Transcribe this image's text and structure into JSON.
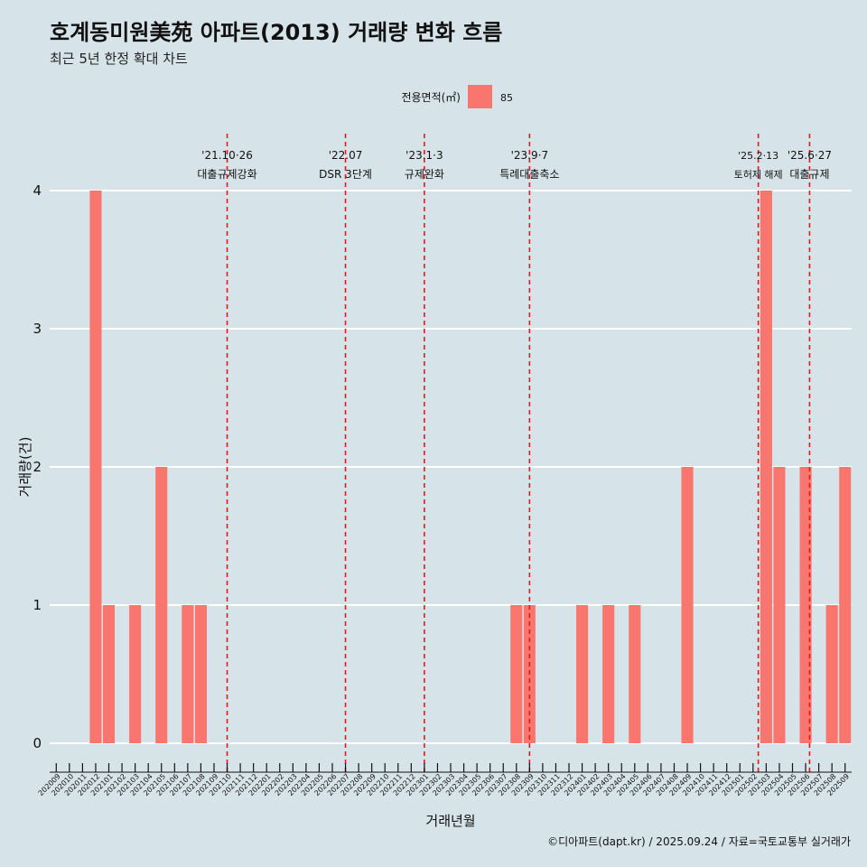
{
  "chart_data": {
    "type": "bar",
    "title": "호계동미원美苑 아파트(2013) 거래량 변화 흐름",
    "subtitle": "최근 5년 한정 확대 차트",
    "xlabel": "거래년월",
    "ylabel": "거래량(건)",
    "ylim": [
      0,
      4
    ],
    "yticks": [
      "0",
      "1",
      "2",
      "3",
      "4"
    ],
    "grid": true,
    "legend": {
      "title": "전용면적(㎡)",
      "placement": "top-center",
      "items": [
        {
          "label": "85",
          "color": "#f8766d"
        }
      ]
    },
    "categories": [
      "202009",
      "202010",
      "202011",
      "202012",
      "202101",
      "202102",
      "202103",
      "202104",
      "202105",
      "202106",
      "202107",
      "202108",
      "202109",
      "202110",
      "202111",
      "202112",
      "202201",
      "202202",
      "202203",
      "202204",
      "202205",
      "202206",
      "202207",
      "202208",
      "202209",
      "202210",
      "202211",
      "202212",
      "202301",
      "202302",
      "202303",
      "202304",
      "202305",
      "202306",
      "202307",
      "202308",
      "202309",
      "202310",
      "202311",
      "202312",
      "202401",
      "202402",
      "202403",
      "202404",
      "202405",
      "202406",
      "202407",
      "202408",
      "202409",
      "202410",
      "202411",
      "202412",
      "202501",
      "202502",
      "202503",
      "202504",
      "202505",
      "202506",
      "202507",
      "202508",
      "202509"
    ],
    "series": [
      {
        "name": "85",
        "color": "#f8766d",
        "values": [
          0,
          0,
          0,
          4,
          1,
          0,
          1,
          0,
          2,
          0,
          1,
          1,
          0,
          0,
          0,
          0,
          0,
          0,
          0,
          0,
          0,
          0,
          0,
          0,
          0,
          0,
          0,
          0,
          0,
          0,
          0,
          0,
          0,
          0,
          0,
          1,
          1,
          0,
          0,
          0,
          1,
          0,
          1,
          0,
          1,
          0,
          0,
          0,
          2,
          0,
          0,
          0,
          0,
          0,
          4,
          2,
          0,
          2,
          0,
          1,
          2
        ]
      }
    ],
    "annotations": [
      {
        "x": 13.0,
        "date": "'21.10·26",
        "label": "대출규제강화",
        "small": false
      },
      {
        "x": 22.0,
        "date": "'22.07",
        "label": "DSR 3단계",
        "small": false
      },
      {
        "x": 28.0,
        "date": "'23.1·3",
        "label": "규제완화",
        "small": false
      },
      {
        "x": 36.0,
        "date": "'23.9·7",
        "label": "특례대출축소",
        "small": false
      },
      {
        "x": 53.4,
        "date": "'25.2·13",
        "label": "토허제 해제",
        "small": true
      },
      {
        "x": 57.3,
        "date": "'25.6·27",
        "label": "대출규제",
        "small": false
      }
    ],
    "line_color": "#e31a1c"
  },
  "footer": {
    "credit": "©디아파트(dapt.kr) / 2025.09.24 / 자료=국토교통부 실거래가"
  }
}
